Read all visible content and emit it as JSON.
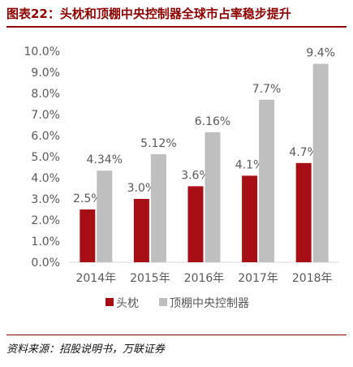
{
  "title": "图表22：头枕和顶棚中央控制器全球市占率稳步提升",
  "source": "资料来源：招股说明书，万联证券",
  "chart_data": {
    "type": "bar",
    "categories": [
      "2014年",
      "2015年",
      "2016年",
      "2017年",
      "2018年"
    ],
    "series": [
      {
        "name": "头枕",
        "values": [
          2.5,
          3.0,
          3.6,
          4.1,
          4.7
        ],
        "labels": [
          "2.5%",
          "3.0%",
          "3.6%",
          "4.1%",
          "4.7%"
        ],
        "color": "#A50F15"
      },
      {
        "name": "顶棚中央控制器",
        "values": [
          4.34,
          5.12,
          6.16,
          7.7,
          9.4
        ],
        "labels": [
          "4.34%",
          "5.12%",
          "6.16%",
          "7.7%",
          "9.4%"
        ],
        "color": "#BFBFBF"
      }
    ],
    "yticks": [
      "0.0%",
      "1.0%",
      "2.0%",
      "3.0%",
      "4.0%",
      "5.0%",
      "6.0%",
      "7.0%",
      "8.0%",
      "9.0%",
      "10.0%"
    ],
    "ylim": [
      0,
      10
    ],
    "grid": false,
    "legend_position": "bottom",
    "axis_color": "#D9D9D9"
  }
}
